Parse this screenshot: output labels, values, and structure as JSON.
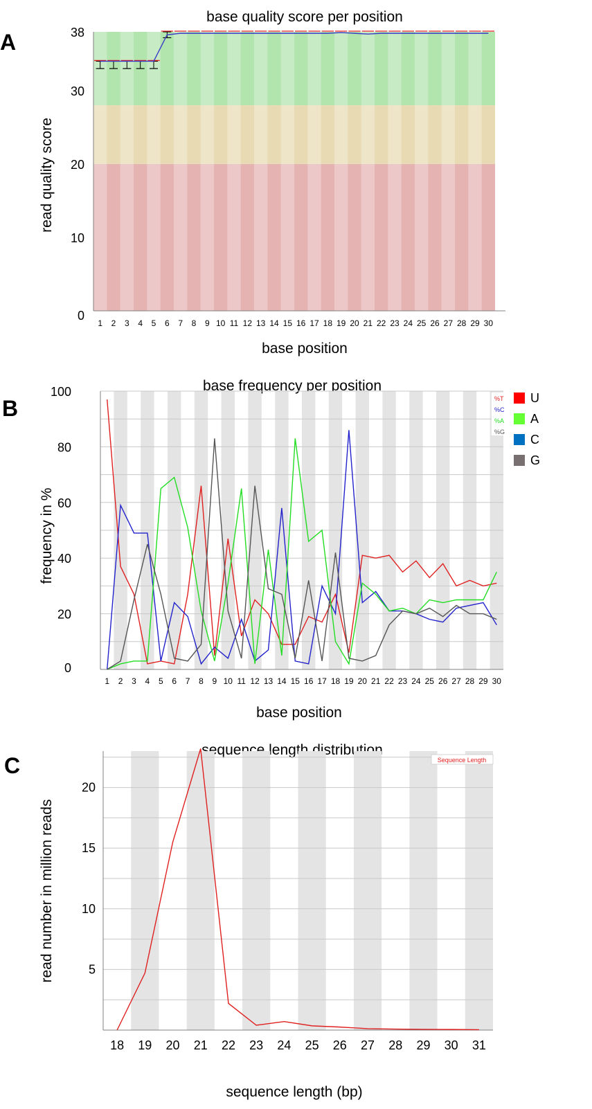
{
  "panels": [
    {
      "letter": "A"
    },
    {
      "letter": "B"
    },
    {
      "letter": "C"
    }
  ],
  "chart_data": [
    {
      "type": "line",
      "title": "base quality score per position",
      "xlabel": "base position",
      "ylabel": "read quality score",
      "x": [
        1,
        2,
        3,
        4,
        5,
        6,
        7,
        8,
        9,
        10,
        11,
        12,
        13,
        14,
        15,
        16,
        17,
        18,
        19,
        20,
        21,
        22,
        23,
        24,
        25,
        26,
        27,
        28,
        29,
        30
      ],
      "ylim": [
        0,
        38
      ],
      "yticks": [
        0,
        10,
        20,
        30,
        38
      ],
      "quality_bands": [
        {
          "name": "good",
          "from": 28,
          "to": 38,
          "color": "#b2e4ad"
        },
        {
          "name": "reasonable",
          "from": 20,
          "to": 28,
          "color": "#e8dbb3"
        },
        {
          "name": "poor",
          "from": 0,
          "to": 20,
          "color": "#e6b3b3"
        }
      ],
      "series": [
        {
          "values": [
            34,
            34,
            34,
            34,
            34,
            37.6,
            37.8,
            37.8,
            37.8,
            37.8,
            37.8,
            37.8,
            37.8,
            37.8,
            37.8,
            37.8,
            37.8,
            37.8,
            37.9,
            37.8,
            37.7,
            37.8,
            37.8,
            37.8,
            37.8,
            37.8,
            37.8,
            37.8,
            37.8,
            37.8
          ],
          "color": "#3a3ac8"
        }
      ],
      "error_bars": {
        "low": [
          33,
          33,
          33,
          33,
          33,
          37.2,
          null,
          null,
          null,
          null,
          null,
          null,
          null,
          null,
          null,
          null,
          null,
          null,
          null,
          null,
          null,
          null,
          null,
          null,
          null,
          null,
          null,
          null,
          null,
          null
        ],
        "high": [
          34,
          34,
          34,
          34,
          34,
          38,
          38,
          38,
          38,
          38,
          38,
          38,
          38,
          38,
          38,
          38,
          38,
          38,
          38,
          38,
          38,
          38,
          38,
          38,
          38,
          38,
          38,
          38,
          38,
          38
        ],
        "color": "#000000",
        "high_color": "#e02020"
      },
      "grid": false
    },
    {
      "type": "line",
      "title": "base frequency per position",
      "xlabel": "base position",
      "ylabel": "frequency in %",
      "x": [
        1,
        2,
        3,
        4,
        5,
        6,
        7,
        8,
        9,
        10,
        11,
        12,
        13,
        14,
        15,
        16,
        17,
        18,
        19,
        20,
        21,
        22,
        23,
        24,
        25,
        26,
        27,
        28,
        29,
        30
      ],
      "ylim": [
        0,
        100
      ],
      "yticks": [
        0,
        20,
        40,
        60,
        80,
        100
      ],
      "series": [
        {
          "name": "%T",
          "color": "#e02020",
          "values": [
            97,
            37,
            27,
            2,
            3,
            2,
            27,
            66,
            5,
            47,
            12,
            25,
            20,
            9,
            9,
            19,
            17,
            27,
            6,
            41,
            40,
            41,
            35,
            39,
            33,
            38,
            30,
            32,
            30,
            31
          ]
        },
        {
          "name": "%C",
          "color": "#2222cc",
          "values": [
            0,
            59,
            49,
            49,
            3,
            24,
            19,
            2,
            8,
            4,
            18,
            3,
            7,
            58,
            3,
            2,
            30,
            20,
            86,
            24,
            28,
            21,
            21,
            20,
            18,
            17,
            22,
            23,
            24,
            16
          ]
        },
        {
          "name": "%A",
          "color": "#22dd22",
          "values": [
            0,
            2,
            3,
            3,
            65,
            69,
            51,
            21,
            3,
            31,
            65,
            2,
            43,
            5,
            83,
            46,
            50,
            10,
            2,
            31,
            27,
            21,
            22,
            20,
            25,
            24,
            25,
            25,
            25,
            35
          ]
        },
        {
          "name": "%G",
          "color": "#555555",
          "values": [
            0,
            3,
            25,
            45,
            27,
            4,
            3,
            9,
            83,
            21,
            4,
            66,
            29,
            27,
            4,
            32,
            3,
            42,
            4,
            3,
            5,
            16,
            21,
            20,
            22,
            19,
            23,
            20,
            20,
            18
          ]
        }
      ],
      "legend": {
        "placement": "top-right",
        "inner": [
          "%T",
          "%C",
          "%A",
          "%G"
        ],
        "outer": [
          {
            "label": "U",
            "color": "#ff0000"
          },
          {
            "label": "A",
            "color": "#66ff33"
          },
          {
            "label": "C",
            "color": "#0070c0"
          },
          {
            "label": "G",
            "color": "#787070"
          }
        ]
      },
      "grid": true
    },
    {
      "type": "line",
      "title": "sequence length distribution",
      "xlabel": "sequence length (bp)",
      "ylabel": "read number in million reads",
      "x": [
        18,
        19,
        20,
        21,
        22,
        23,
        24,
        25,
        26,
        27,
        28,
        29,
        30,
        31
      ],
      "ylim": [
        0,
        23
      ],
      "yticks": [
        5,
        10,
        15,
        20
      ],
      "series": [
        {
          "name": "Sequence Length",
          "color": "#e02020",
          "values": [
            0,
            4.7,
            15.5,
            23.2,
            2.2,
            0.4,
            0.7,
            0.35,
            0.25,
            0.12,
            0.08,
            0.06,
            0.05,
            0.03
          ]
        }
      ],
      "legend": {
        "placement": "top-right"
      },
      "grid": true
    }
  ]
}
